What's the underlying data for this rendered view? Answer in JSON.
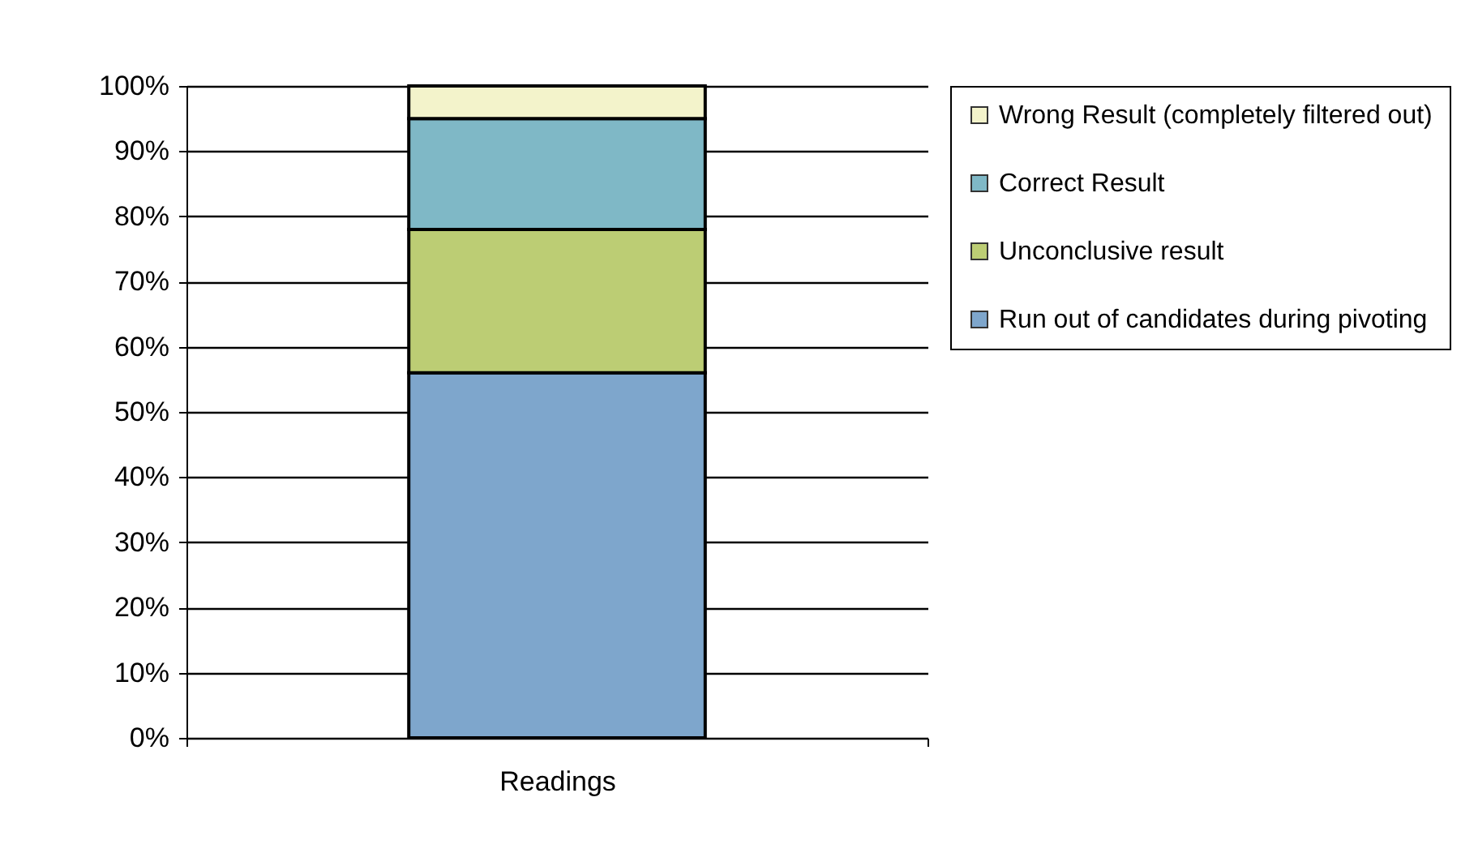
{
  "chart_data": {
    "type": "bar",
    "stacked": true,
    "categories": [
      "Readings"
    ],
    "series": [
      {
        "name": "Run out of candidates during pivoting",
        "color": "#7ea6cc",
        "values": [
          56
        ]
      },
      {
        "name": "Unconclusive result",
        "color": "#bccd74",
        "values": [
          22
        ]
      },
      {
        "name": "Correct Result",
        "color": "#7fb8c6",
        "values": [
          17
        ]
      },
      {
        "name": "Wrong Result (completely filtered out)",
        "color": "#f3f3cb",
        "values": [
          5
        ]
      }
    ],
    "ylim": [
      0,
      100
    ],
    "yticks": [
      {
        "value": 0,
        "label": "0%"
      },
      {
        "value": 10,
        "label": "10%"
      },
      {
        "value": 20,
        "label": "20%"
      },
      {
        "value": 30,
        "label": "30%"
      },
      {
        "value": 40,
        "label": "40%"
      },
      {
        "value": 50,
        "label": "50%"
      },
      {
        "value": 60,
        "label": "60%"
      },
      {
        "value": 70,
        "label": "70%"
      },
      {
        "value": 80,
        "label": "80%"
      },
      {
        "value": 90,
        "label": "90%"
      },
      {
        "value": 100,
        "label": "100%"
      }
    ],
    "grid": "y",
    "legend": "right"
  }
}
